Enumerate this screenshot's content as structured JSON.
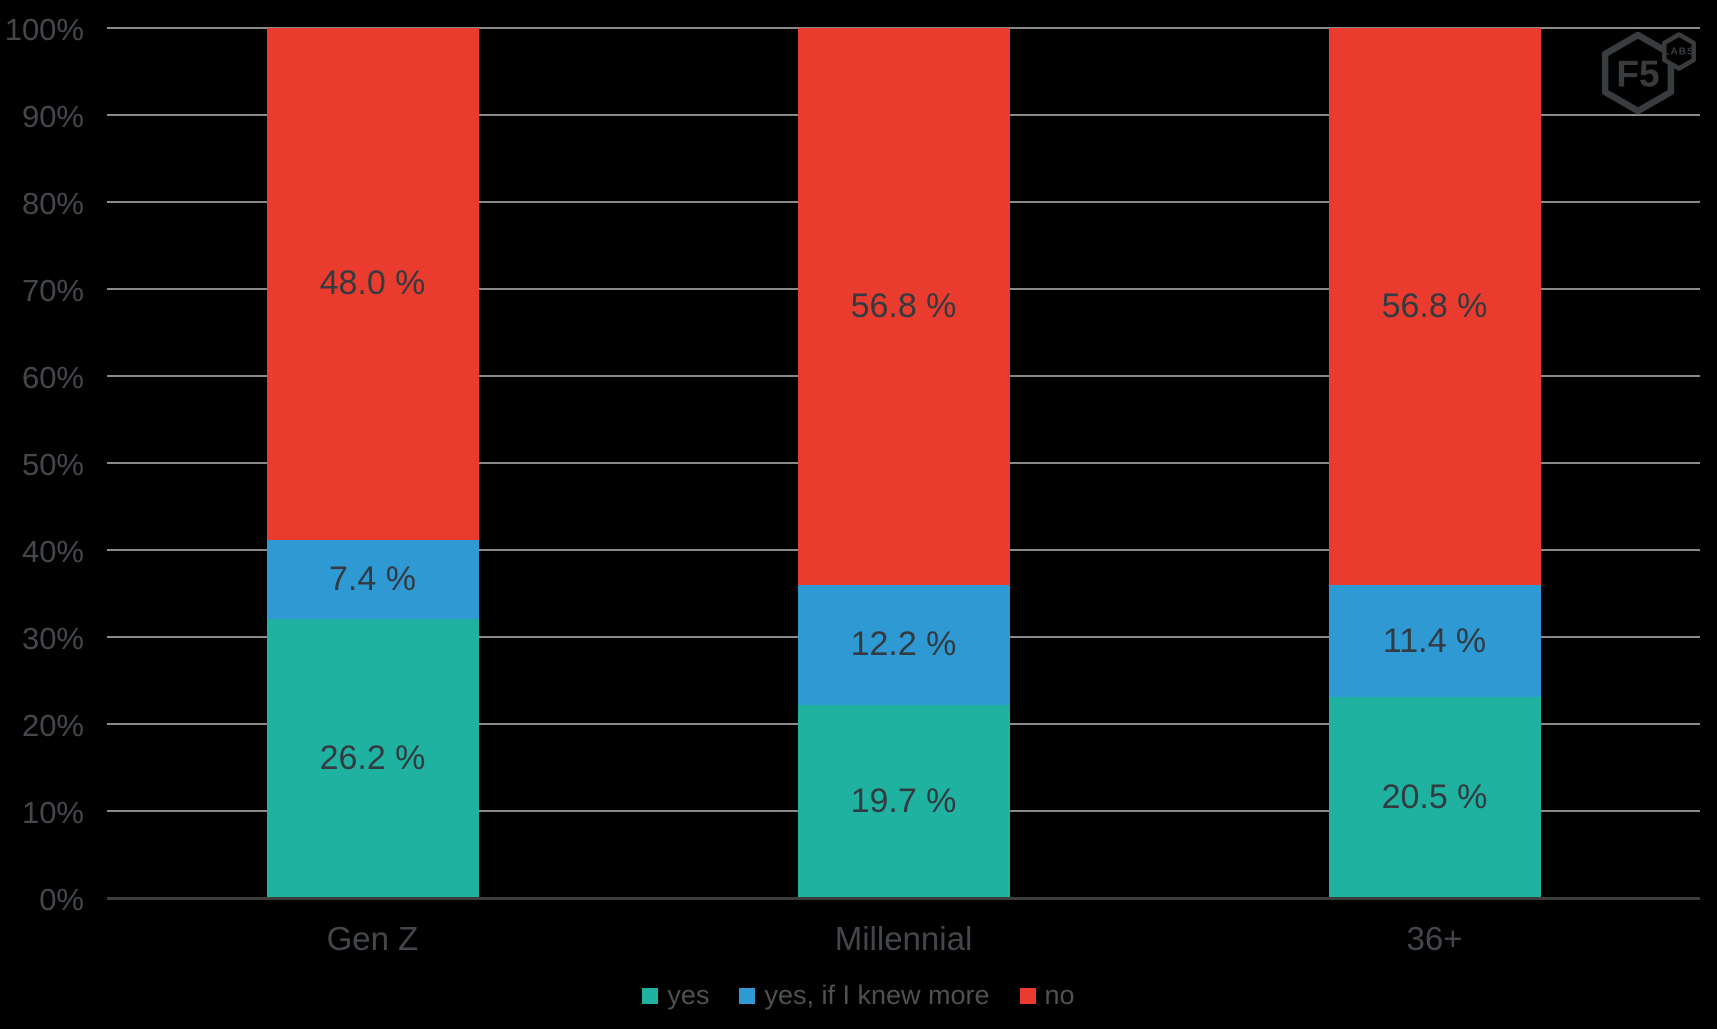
{
  "page": {
    "background": "#000000"
  },
  "logo": {
    "name": "f5-labs-logo",
    "primary_text": "F5",
    "secondary_text": "LABS",
    "color": "#393c3e"
  },
  "chart_data": {
    "type": "bar",
    "stacking": "percent",
    "title": "",
    "categories": [
      "Gen Z",
      "Millennial",
      "36+"
    ],
    "series": [
      {
        "name": "yes",
        "color": "#1fb2a1",
        "values": [
          26.2,
          19.7,
          20.5
        ],
        "labels": [
          "26.2 %",
          "19.7 %",
          "20.5 %"
        ]
      },
      {
        "name": "yes, if I knew more",
        "color": "#2f99d3",
        "values": [
          7.4,
          12.2,
          11.4
        ],
        "labels": [
          "7.4 %",
          "12.2 %",
          "11.4 %"
        ]
      },
      {
        "name": "no",
        "color": "#e93c2e",
        "values": [
          48.0,
          56.8,
          56.8
        ],
        "labels": [
          "48.0 %",
          "56.8 %",
          "56.8 %"
        ]
      }
    ],
    "y_axis": {
      "min": 0,
      "max": 100,
      "step": 10,
      "tick_labels": [
        "0%",
        "10%",
        "20%",
        "30%",
        "40%",
        "50%",
        "60%",
        "70%",
        "80%",
        "90%",
        "100%"
      ],
      "tick_color": "#43474b"
    },
    "x_axis": {
      "label_color": "#43474b",
      "axis_line_color": "#3d3d3d"
    },
    "grid": {
      "horizontal": true,
      "color": "#8a8a8a"
    },
    "data_label_color": "#333a40",
    "legend": {
      "position": "bottom",
      "text_color": "#4e5154"
    }
  }
}
